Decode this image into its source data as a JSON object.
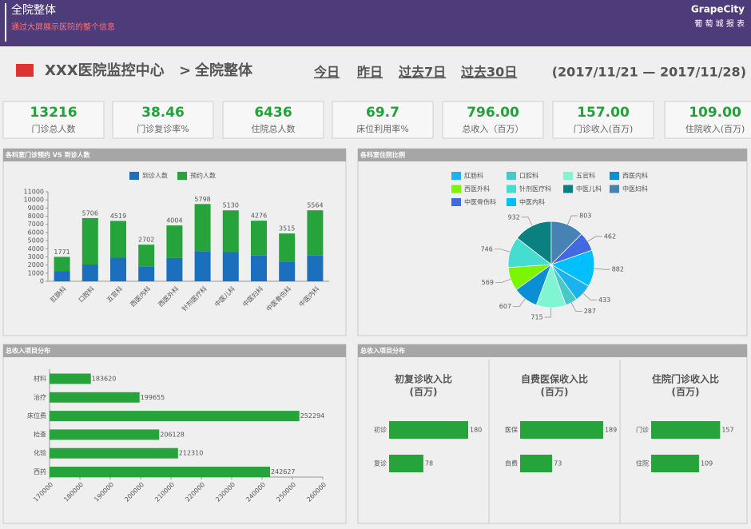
{
  "header": {
    "title": "全院整体",
    "subtitle": "通过大屏展示医院的整个信息",
    "brand": "GrapeCity",
    "brand_sub": "葡 萄 城 报 表"
  },
  "breadcrumb": {
    "root": "XXX医院监控中心",
    "separator": ">",
    "current": "全院整体"
  },
  "nav": [
    "今日",
    "昨日",
    "过去7日",
    "过去30日"
  ],
  "date_range": "(2017/11/21 — 2017/11/28)",
  "kpis": [
    {
      "value": "13216",
      "label": "门诊总人数"
    },
    {
      "value": "38.46",
      "label": "门诊复诊率%"
    },
    {
      "value": "6436",
      "label": "住院总人数"
    },
    {
      "value": "69.7",
      "label": "床位利用率%"
    },
    {
      "value": "796.00",
      "label": "总收入（百万）"
    },
    {
      "value": "157.00",
      "label": "门诊收入(百万)"
    },
    {
      "value": "109.00",
      "label": "住院收入(百万)"
    }
  ],
  "income_panel": {
    "title": "总收入项目分布"
  },
  "chart_data": [
    {
      "type": "stacked-bar",
      "title": "各科室门诊预约 VS 到诊人数",
      "categories": [
        "肛肠科",
        "口腔科",
        "五官科",
        "西医内科",
        "西医外科",
        "针剂医疗科",
        "中医儿科",
        "中医妇科",
        "中医骨伤科",
        "中医内科"
      ],
      "series": [
        {
          "name": "到诊人数",
          "color": "#1b6fbd",
          "values": [
            1230,
            2060,
            2900,
            1800,
            2860,
            3700,
            3590,
            3170,
            2360,
            3160
          ]
        },
        {
          "name": "预约人数",
          "color": "#26a33b",
          "values": [
            1771,
            5706,
            4519,
            2702,
            4004,
            5798,
            5130,
            4276,
            3515,
            5564
          ]
        }
      ],
      "ylim": [
        0,
        11000
      ],
      "yticks": [
        0,
        1000,
        2000,
        3000,
        4000,
        5000,
        6000,
        7000,
        8000,
        9000,
        10000,
        11000
      ]
    },
    {
      "type": "pie",
      "title": "各科室住院比例",
      "categories": [
        "肛肠科",
        "口腔科",
        "五官科",
        "西医内科",
        "西医外科",
        "针剂医疗科",
        "中医儿科",
        "中医妇科",
        "中医骨伤科",
        "中医内科"
      ],
      "values": [
        433,
        287,
        715,
        607,
        569,
        746,
        932,
        803,
        462,
        882
      ],
      "colors": [
        "#1ab3f0",
        "#48c8c8",
        "#7ff5d2",
        "#0a8fd4",
        "#7cf500",
        "#44ddd0",
        "#0a8080",
        "#4682b4",
        "#4169e1",
        "#00bfff"
      ]
    },
    {
      "type": "hbar",
      "title": "总收入项目分布",
      "categories": [
        "材料",
        "治疗",
        "床位费",
        "检查",
        "化验",
        "西药"
      ],
      "values": [
        183620,
        199655,
        252294,
        206128,
        212310,
        242627
      ],
      "color": "#26a33b",
      "xlim": [
        170000,
        260000
      ],
      "xticks": [
        170000,
        180000,
        190000,
        200000,
        210000,
        220000,
        230000,
        240000,
        250000,
        260000
      ]
    },
    {
      "type": "mini-hbar",
      "title": "初复诊收入比",
      "subtitle": "(百万)",
      "categories": [
        "初诊",
        "复诊"
      ],
      "values": [
        180,
        78
      ],
      "color": "#26a33b"
    },
    {
      "type": "mini-hbar",
      "title": "自费医保收入比",
      "subtitle": "(百万)",
      "categories": [
        "医保",
        "自费"
      ],
      "values": [
        189,
        73
      ],
      "color": "#26a33b"
    },
    {
      "type": "mini-hbar",
      "title": "住院门诊收入比",
      "subtitle": "(百万)",
      "categories": [
        "门诊",
        "住院"
      ],
      "values": [
        157,
        109
      ],
      "color": "#26a33b"
    }
  ]
}
